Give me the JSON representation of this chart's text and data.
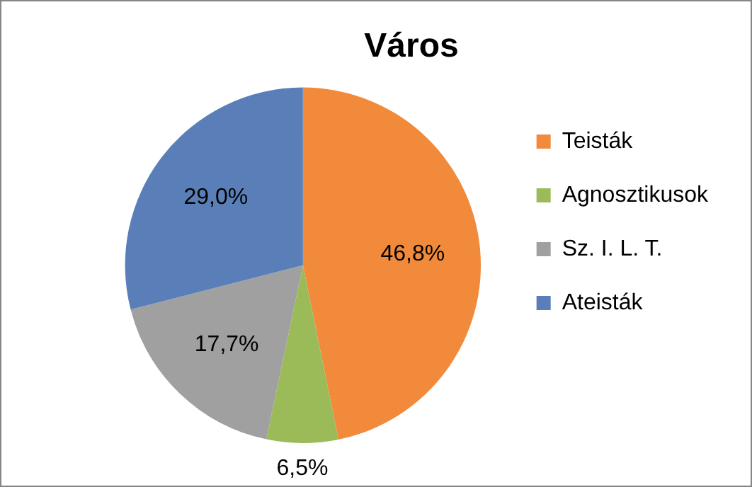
{
  "chart_data": {
    "type": "pie",
    "title": "Város",
    "categories": [
      "Teisták",
      "Agnosztikusok",
      "Sz. I. L. T.",
      "Ateisták"
    ],
    "values": [
      46.8,
      6.5,
      17.7,
      29.0
    ],
    "colors": [
      "#f28a3c",
      "#9bbb59",
      "#a0a0a0",
      "#5a7fb8"
    ],
    "value_labels": [
      "46,8%",
      "6,5%",
      "17,7%",
      "29,0%"
    ],
    "legend": "right"
  }
}
